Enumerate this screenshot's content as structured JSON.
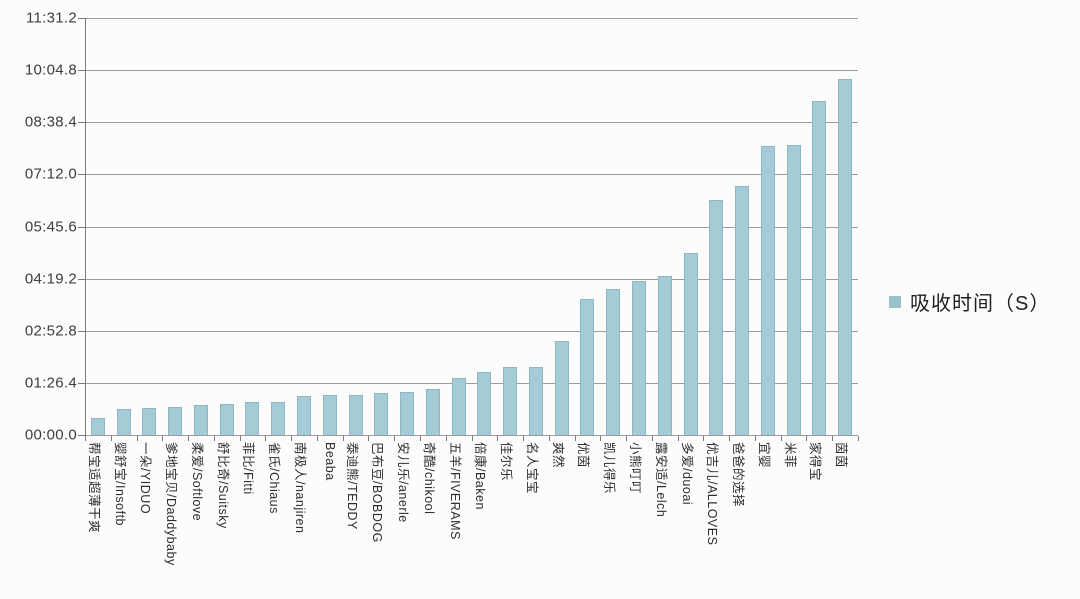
{
  "chart_data": {
    "type": "bar",
    "title": "",
    "legend": "吸收时间（S）",
    "legend_position": "right",
    "unit": "seconds",
    "grid": true,
    "ylim_seconds": [
      0,
      691.2
    ],
    "ytick_labels": [
      "11:31.2",
      "10:04.8",
      "08:38.4",
      "07:12.0",
      "05:45.6",
      "04:19.2",
      "02:52.8",
      "01:26.4",
      "00:00.0"
    ],
    "ytick_seconds": [
      691.2,
      604.8,
      518.4,
      432.0,
      345.6,
      259.2,
      172.8,
      86.4,
      0.0
    ],
    "categories": [
      "帮宝适超薄干爽",
      "婴舒宝/Insoftb",
      "一朵/YIDUO",
      "爹地宝贝/Daddybaby",
      "柔爱/Softlove",
      "舒比奇/Suitsky",
      "菲比/Fitti",
      "雀氏/Chiaus",
      "南极人/nanjiren",
      "Beaba",
      "泰迪熊/TEDDY",
      "巴布豆/BOBDOG",
      "安儿乐/anerle",
      "奇酷/chikool",
      "五羊/FIVERAMS",
      "倍康/Baken",
      "佳尔乐",
      "名人宝宝",
      "爽然",
      "优茵",
      "凯儿得乐",
      "小熊叮叮",
      "露安适/Lelch",
      "多爱/duoai",
      "优吉儿/ALLOVES",
      "爸爸的选择",
      "宜婴",
      "米菲",
      "家得宝",
      "茵茵"
    ],
    "values": [
      28,
      43,
      44,
      46,
      49,
      51,
      54,
      54,
      65,
      67,
      67,
      69,
      72,
      76,
      94,
      104,
      112,
      113,
      156,
      225,
      242,
      256,
      264,
      302,
      390,
      413,
      479,
      481,
      553,
      590
    ],
    "bar_color": "#a5cbd7",
    "bar_border_color": "#8fb6c4",
    "legend_marker_color": "#9dc3ca",
    "gridline_color": "#9b9b9b"
  }
}
